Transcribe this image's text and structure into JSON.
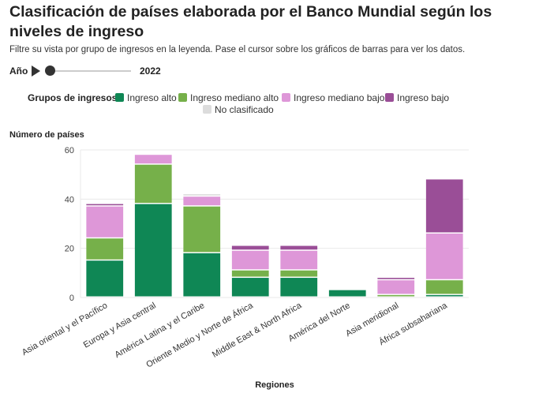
{
  "header": {
    "title": "Clasificación de países elaborada por el Banco Mundial según los niveles de ingreso",
    "subtitle": "Filtre su vista por grupo de ingresos en la leyenda. Pase el cursor sobre los gráficos de barras para ver los datos."
  },
  "controls": {
    "year_label": "Año",
    "year_value": "2022",
    "play_icon": "play-icon",
    "slider_position": 0
  },
  "legend": {
    "title": "Grupos de ingresos",
    "items": [
      {
        "label": "Ingreso alto",
        "color": "#0f8755"
      },
      {
        "label": "Ingreso mediano alto",
        "color": "#76b04a"
      },
      {
        "label": "Ingreso mediano bajo",
        "color": "#de97d8"
      },
      {
        "label": "Ingreso bajo",
        "color": "#9a4e97"
      },
      {
        "label": "No clasificado",
        "color": "#dcdcdc"
      }
    ]
  },
  "chart_data": {
    "type": "bar",
    "stacked": true,
    "ylabel": "Número de países",
    "xlabel": "Regiones",
    "ylim": [
      0,
      60
    ],
    "yticks": [
      0,
      20,
      40,
      60
    ],
    "grid": true,
    "categories": [
      "Asia oriental y el Pacífico",
      "Europa y Asia central",
      "América Latina y el Caribe",
      "Oriente Medio y Norte de África",
      "Middle East & North Africa",
      "América del Norte",
      "Asia meridional",
      "África subsahariana"
    ],
    "series": [
      {
        "name": "Ingreso alto",
        "color": "#0f8755",
        "values": [
          15,
          38,
          18,
          8,
          8,
          3,
          0,
          1
        ]
      },
      {
        "name": "Ingreso mediano alto",
        "color": "#76b04a",
        "values": [
          9,
          16,
          19,
          3,
          3,
          0,
          1,
          6
        ]
      },
      {
        "name": "Ingreso mediano bajo",
        "color": "#de97d8",
        "values": [
          13,
          4,
          4,
          8,
          8,
          0,
          6,
          19
        ]
      },
      {
        "name": "Ingreso bajo",
        "color": "#9a4e97",
        "values": [
          1,
          0,
          0,
          2,
          2,
          0,
          1,
          22
        ]
      },
      {
        "name": "No clasificado",
        "color": "#dcdcdc",
        "values": [
          0,
          0,
          1,
          0,
          0,
          0,
          0,
          0
        ]
      }
    ]
  }
}
